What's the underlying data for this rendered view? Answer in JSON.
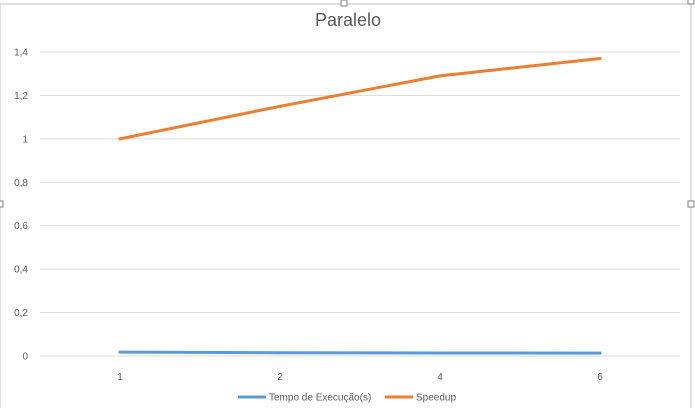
{
  "chart_data": {
    "type": "line",
    "title": "Paralelo",
    "categories": [
      "1",
      "2",
      "4",
      "6"
    ],
    "ylim": [
      0,
      1.4
    ],
    "yticks": [
      "0",
      "0,2",
      "0,4",
      "0,6",
      "0,8",
      "1",
      "1,2",
      "1,4"
    ],
    "grid": true,
    "legend_position": "bottom",
    "series": [
      {
        "name": "Tempo de Execução(s)",
        "values": [
          0.018,
          0.015,
          0.014,
          0.013
        ],
        "color": "#5B9BD5"
      },
      {
        "name": "Speedup",
        "values": [
          1.0,
          1.15,
          1.29,
          1.37
        ],
        "color": "#ED7D31"
      }
    ]
  }
}
